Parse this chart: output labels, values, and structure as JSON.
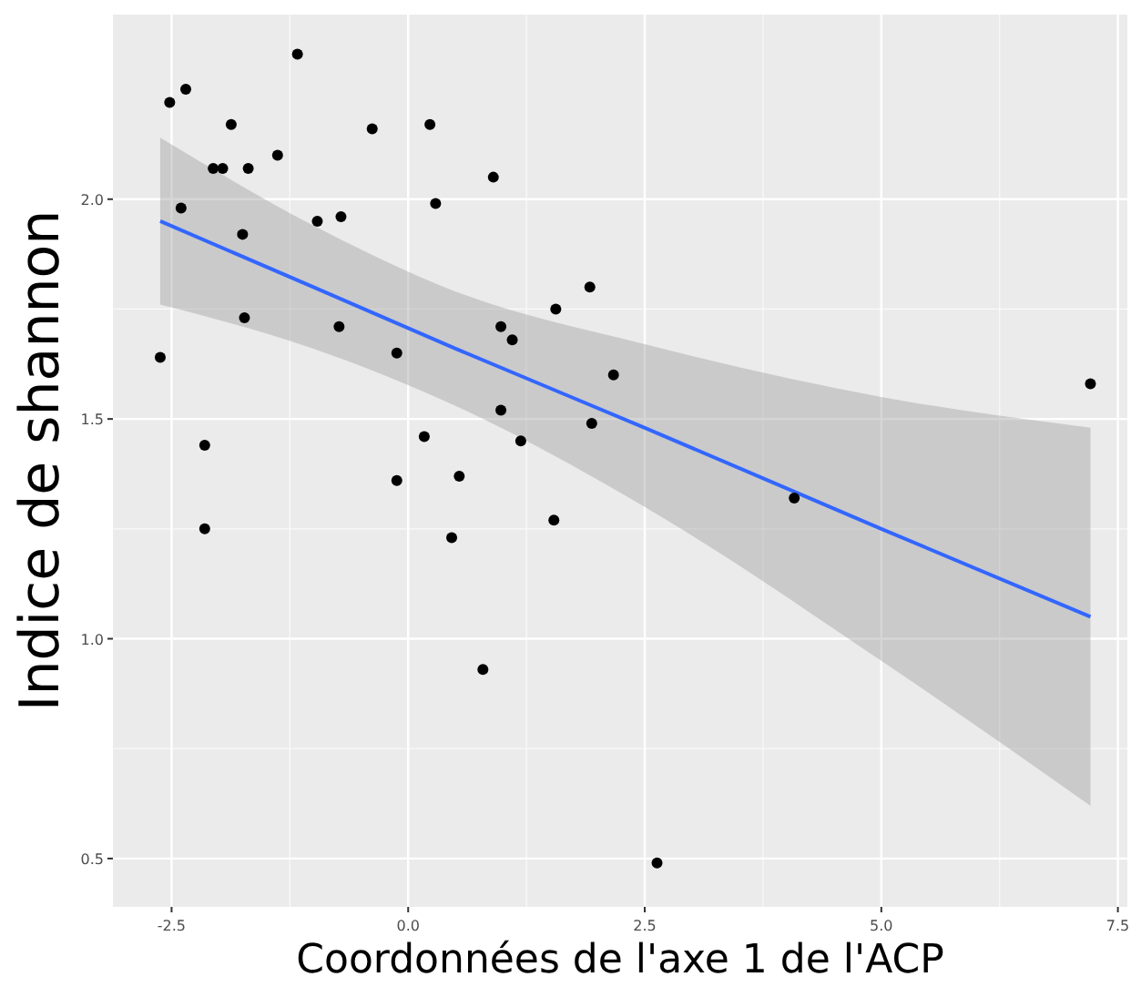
{
  "chart_data": {
    "type": "scatter",
    "xlabel": "Coordonnées de l'axe 1 de l'ACP",
    "ylabel": "Indice de shannon",
    "xlim": [
      -3.12,
      7.6
    ],
    "ylim": [
      0.39,
      2.42
    ],
    "xticks": [
      {
        "value": -2.5,
        "label": "-2.5"
      },
      {
        "value": 0,
        "label": "0.0"
      },
      {
        "value": 2.5,
        "label": "2.5"
      },
      {
        "value": 5,
        "label": "5.0"
      },
      {
        "value": 7.5,
        "label": "7.5"
      }
    ],
    "yticks": [
      {
        "value": 0.5,
        "label": "0.5"
      },
      {
        "value": 1,
        "label": "1.0"
      },
      {
        "value": 1.5,
        "label": "1.5"
      },
      {
        "value": 2,
        "label": "2.0"
      }
    ],
    "grid": true,
    "marker": "circle",
    "series": [
      {
        "color": "#000000",
        "x": [
          -2.62,
          -2.52,
          -2.35,
          -2.4,
          -1.87,
          -2.06,
          -1.96,
          -1.69,
          -1.75,
          -1.73,
          -2.15,
          -2.15,
          -1.38,
          -1.17,
          -0.96,
          -0.71,
          -0.73,
          -0.38,
          -0.12,
          -0.12,
          0.17,
          0.23,
          0.29,
          0.54,
          0.46,
          0.79,
          0.9,
          0.98,
          1.1,
          0.98,
          1.19,
          1.54,
          1.56,
          1.92,
          1.94,
          2.17,
          2.63,
          4.08,
          7.21
        ],
        "values": [
          1.64,
          2.22,
          2.25,
          1.98,
          2.17,
          2.07,
          2.07,
          2.07,
          1.92,
          1.73,
          1.44,
          1.25,
          2.1,
          2.33,
          1.95,
          1.96,
          1.71,
          2.16,
          1.65,
          1.36,
          1.46,
          2.17,
          1.99,
          1.37,
          1.23,
          0.93,
          2.05,
          1.71,
          1.68,
          1.52,
          1.45,
          1.27,
          1.75,
          1.8,
          1.49,
          1.6,
          0.49,
          1.32,
          1.58
        ]
      },
      {
        "type": "line",
        "color": "#3366ff",
        "marker": "none",
        "x": [
          -2.62,
          -1,
          0.5,
          2.5,
          5,
          7.21
        ],
        "values": [
          1.95,
          1.8,
          1.66,
          1.48,
          1.25,
          1.05
        ],
        "lower": [
          1.76,
          1.66,
          1.53,
          1.3,
          0.95,
          0.62
        ],
        "upper": [
          2.14,
          1.94,
          1.79,
          1.67,
          1.55,
          1.48
        ]
      }
    ]
  }
}
